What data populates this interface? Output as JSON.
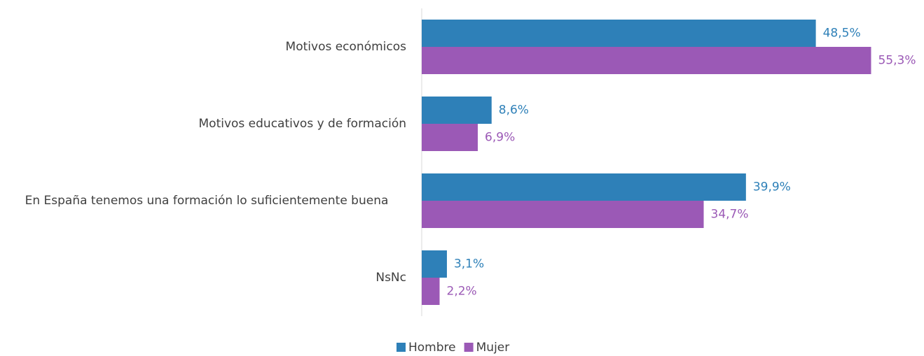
{
  "chart_data": {
    "type": "bar",
    "orientation": "horizontal",
    "categories": [
      "Motivos económicos",
      "Motivos educativos y de formación",
      "En España tenemos una formación lo suficientemente buena",
      "NsNc"
    ],
    "series": [
      {
        "name": "Hombre",
        "color": "#2e80b8",
        "values": [
          48.5,
          8.6,
          39.9,
          3.1
        ],
        "value_labels": [
          "48,5%",
          "8,6%",
          "39,9%",
          "3,1%"
        ]
      },
      {
        "name": "Mujer",
        "color": "#9b59b6",
        "values": [
          55.3,
          6.9,
          34.7,
          2.2
        ],
        "value_labels": [
          "55,3%",
          "6,9%",
          "34,7%",
          "2,2%"
        ]
      }
    ],
    "xlim": [
      0,
      60
    ],
    "legend": "bottom"
  }
}
